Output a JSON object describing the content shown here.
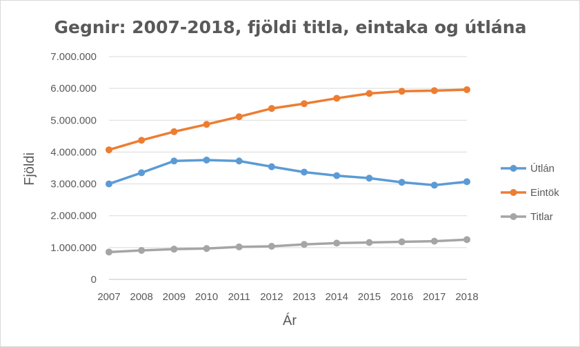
{
  "chart_data": {
    "type": "line",
    "title": "Gegnir: 2007-2018, fjöldi titla, eintaka og útlána",
    "xlabel": "Ár",
    "ylabel": "Fjöldi",
    "ylim": [
      0,
      7000000
    ],
    "yticks": [
      0,
      1000000,
      2000000,
      3000000,
      4000000,
      5000000,
      6000000,
      7000000
    ],
    "ytick_labels": [
      "0",
      "1.000.000",
      "2.000.000",
      "3.000.000",
      "4.000.000",
      "5.000.000",
      "6.000.000",
      "7.000.000"
    ],
    "categories": [
      "2007",
      "2008",
      "2009",
      "2010",
      "2011",
      "2012",
      "2013",
      "2014",
      "2015",
      "2016",
      "2017",
      "2018"
    ],
    "grid": true,
    "legend_position": "right",
    "series": [
      {
        "name": "Útlán",
        "color": "#5b9bd5",
        "values": [
          3000000,
          3350000,
          3720000,
          3750000,
          3720000,
          3540000,
          3370000,
          3260000,
          3180000,
          3050000,
          2960000,
          3070000
        ]
      },
      {
        "name": "Eintök",
        "color": "#ed7d31",
        "values": [
          4070000,
          4370000,
          4640000,
          4870000,
          5110000,
          5370000,
          5520000,
          5690000,
          5840000,
          5910000,
          5930000,
          5960000
        ]
      },
      {
        "name": "Titlar",
        "color": "#a5a5a5",
        "values": [
          860000,
          910000,
          950000,
          970000,
          1020000,
          1040000,
          1100000,
          1140000,
          1160000,
          1180000,
          1200000,
          1250000
        ]
      }
    ]
  }
}
